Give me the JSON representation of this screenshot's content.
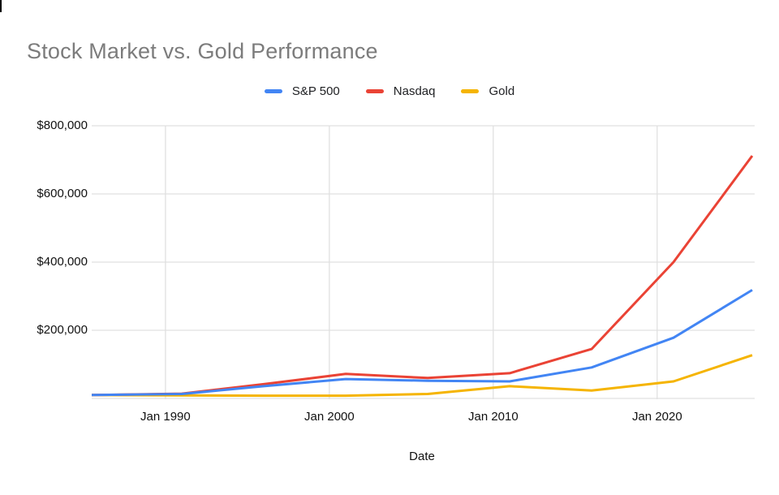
{
  "artifact": {
    "corner_mark": "black-tick"
  },
  "chart_data": {
    "type": "line",
    "title": "Stock Market vs. Gold Performance",
    "xlabel": "Date",
    "ylabel": "",
    "legend_position": "top-center",
    "grid": true,
    "background": "#ffffff",
    "ylim": [
      0,
      800000
    ],
    "xlim": [
      1985.5,
      2025.8
    ],
    "x": [
      1985.5,
      1991,
      1996,
      2001,
      2006,
      2011,
      2016,
      2021,
      2025.8
    ],
    "series": [
      {
        "name": "S&P 500",
        "color": "#4285F4",
        "values": [
          10000,
          13000,
          36000,
          57000,
          52000,
          50000,
          91000,
          178000,
          318000
        ]
      },
      {
        "name": "Nasdaq",
        "color": "#EA4335",
        "values": [
          10000,
          14000,
          42000,
          72000,
          60000,
          74000,
          145000,
          400000,
          712000
        ]
      },
      {
        "name": "Gold",
        "color": "#F5B400",
        "values": [
          10000,
          9000,
          8000,
          8000,
          13000,
          36000,
          23000,
          50000,
          127000
        ]
      }
    ],
    "y_ticks": [
      {
        "value": 200000,
        "label": "$200,000"
      },
      {
        "value": 400000,
        "label": "$400,000"
      },
      {
        "value": 600000,
        "label": "$600,000"
      },
      {
        "value": 800000,
        "label": "$800,000"
      }
    ],
    "x_ticks": [
      {
        "x": 1990,
        "label": "Jan 1990"
      },
      {
        "x": 2000,
        "label": "Jan 2000"
      },
      {
        "x": 2010,
        "label": "Jan 2010"
      },
      {
        "x": 2020,
        "label": "Jan 2020"
      }
    ]
  }
}
